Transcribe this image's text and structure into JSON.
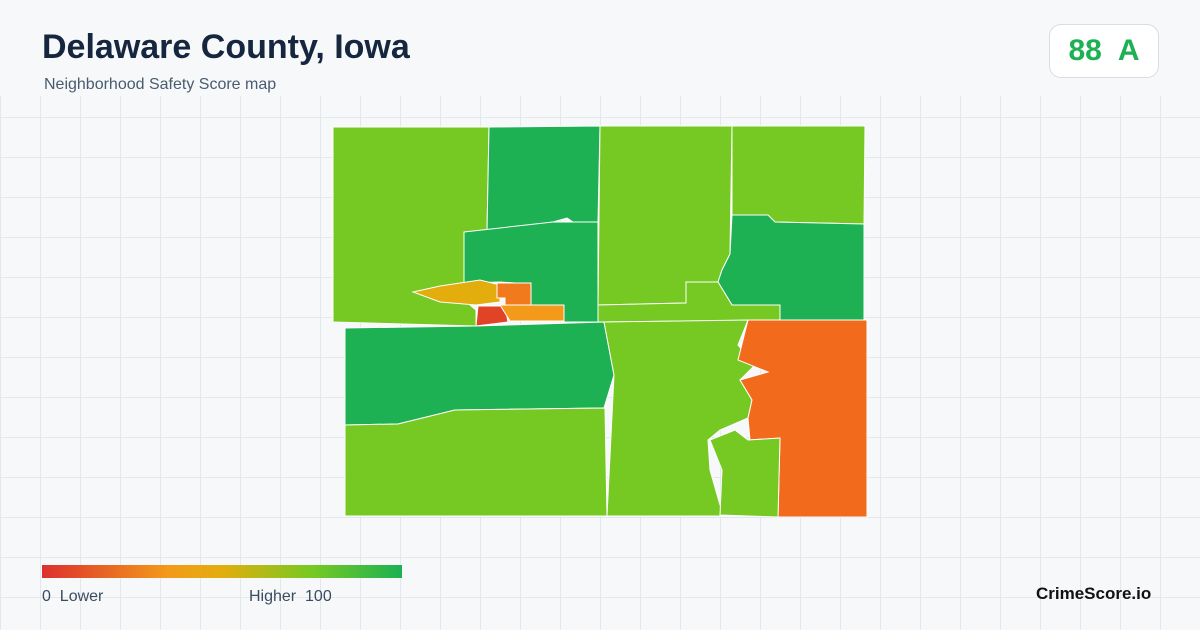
{
  "header": {
    "title": "Delaware County, Iowa",
    "subtitle": "Neighborhood Safety Score map"
  },
  "score": {
    "value": 88,
    "grade": "A"
  },
  "legend": {
    "min": 0,
    "min_label": "Lower",
    "max_label": "Higher",
    "max": 100
  },
  "brand": "CrimeScore.io"
}
